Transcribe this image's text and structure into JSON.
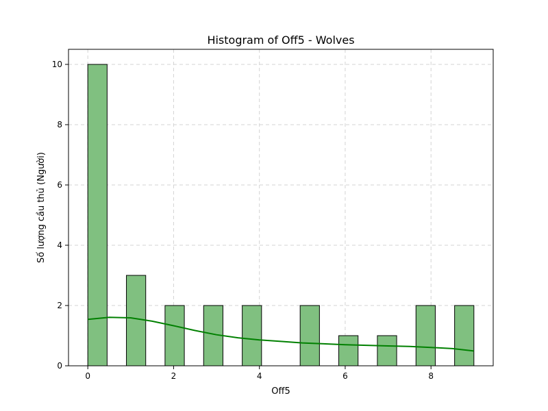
{
  "chart_data": {
    "type": "bar",
    "title": "Histogram of Off5 - Wolves",
    "xlabel": "Off5",
    "ylabel": "Số lượng cầu thủ (Người)",
    "xlim": [
      -0.45,
      9.45
    ],
    "ylim": [
      0,
      10.5
    ],
    "xticks": [
      0,
      2,
      4,
      6,
      8
    ],
    "yticks": [
      0,
      2,
      4,
      6,
      8,
      10
    ],
    "grid": true,
    "bin_width": 0.45,
    "bars": [
      {
        "x": 0,
        "value": 10
      },
      {
        "x": 0.9,
        "value": 3
      },
      {
        "x": 1.8,
        "value": 2
      },
      {
        "x": 2.7,
        "value": 2
      },
      {
        "x": 3.6,
        "value": 2
      },
      {
        "x": 4.95,
        "value": 2
      },
      {
        "x": 5.85,
        "value": 1
      },
      {
        "x": 6.75,
        "value": 1
      },
      {
        "x": 7.65,
        "value": 2
      },
      {
        "x": 8.55,
        "value": 2
      }
    ],
    "kde": {
      "x": [
        0,
        0.5,
        1.0,
        1.5,
        2.0,
        2.5,
        3.0,
        3.5,
        4.0,
        4.5,
        5.0,
        5.5,
        6.0,
        6.5,
        7.0,
        7.5,
        8.0,
        8.5,
        9.0
      ],
      "y": [
        1.54,
        1.61,
        1.59,
        1.48,
        1.33,
        1.17,
        1.03,
        0.93,
        0.86,
        0.81,
        0.76,
        0.73,
        0.7,
        0.68,
        0.66,
        0.64,
        0.61,
        0.57,
        0.49
      ]
    },
    "colors": {
      "bar_fill": "#80c080",
      "bar_edge": "#000000",
      "kde_line": "#008000",
      "grid": "#d3d3d3"
    }
  }
}
